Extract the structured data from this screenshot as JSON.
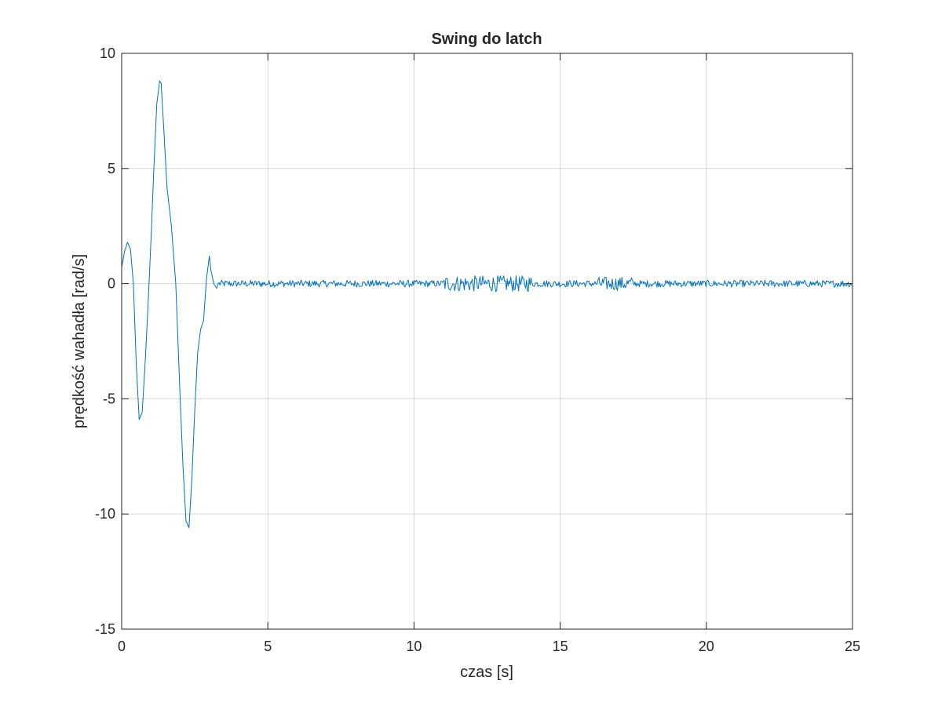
{
  "chart_data": {
    "type": "line",
    "title": "Swing do latch",
    "xlabel": "czas [s]",
    "ylabel": "prędkość wahadła [rad/s]",
    "xlim": [
      0,
      25
    ],
    "ylim": [
      -15,
      10
    ],
    "xticks": [
      0,
      5,
      10,
      15,
      20,
      25
    ],
    "xtick_labels": [
      "0",
      "5",
      "10",
      "15",
      "20",
      "25"
    ],
    "yticks": [
      -15,
      -10,
      -5,
      0,
      5,
      10
    ],
    "ytick_labels": [
      "-15",
      "-10",
      "-5",
      "0",
      "5",
      "10"
    ],
    "grid": true,
    "line_color": "#0072BD",
    "series": [
      {
        "x": [
          0,
          0.1,
          0.2,
          0.3,
          0.4,
          0.5,
          0.6,
          0.7,
          0.8,
          0.9,
          1.0,
          1.1,
          1.2,
          1.3,
          1.35,
          1.45,
          1.55,
          1.7,
          1.85,
          2.0,
          2.1,
          2.2,
          2.3,
          2.4,
          2.5,
          2.6,
          2.7,
          2.8,
          2.9,
          3.0,
          3.05,
          3.15,
          3.25,
          3.3
        ],
        "y": [
          0.7,
          1.4,
          1.8,
          1.5,
          0.0,
          -3.5,
          -5.9,
          -5.6,
          -3.5,
          -1.0,
          1.8,
          5.0,
          7.8,
          8.8,
          8.7,
          6.5,
          4.2,
          2.5,
          0.0,
          -5.0,
          -8.0,
          -10.3,
          -10.6,
          -8.5,
          -5.5,
          -3.0,
          -2.0,
          -1.6,
          0.2,
          1.2,
          0.6,
          0.0,
          -0.2,
          0.0
        ]
      }
    ],
    "noise_segments": [
      {
        "x_start": 3.3,
        "x_end": 11.0,
        "amplitude": 0.15
      },
      {
        "x_start": 11.0,
        "x_end": 14.0,
        "amplitude": 0.35
      },
      {
        "x_start": 14.0,
        "x_end": 16.3,
        "amplitude": 0.15
      },
      {
        "x_start": 16.3,
        "x_end": 17.5,
        "amplitude": 0.3
      },
      {
        "x_start": 17.5,
        "x_end": 25.0,
        "amplitude": 0.15
      }
    ]
  }
}
